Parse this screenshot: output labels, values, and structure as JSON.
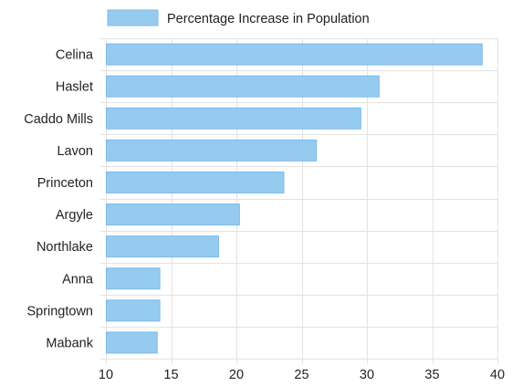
{
  "chart_data": {
    "type": "bar",
    "orientation": "horizontal",
    "categories": [
      "Celina",
      "Haslet",
      "Caddo Mills",
      "Lavon",
      "Princeton",
      "Argyle",
      "Northlake",
      "Anna",
      "Springtown",
      "Mabank"
    ],
    "series": [
      {
        "name": "Percentage Increase in Population",
        "values": [
          38.8,
          30.9,
          29.5,
          26.1,
          23.6,
          20.2,
          18.6,
          14.1,
          14.1,
          13.9
        ],
        "color": "#96cbf0"
      }
    ],
    "xlim": [
      10,
      40
    ],
    "xticks": [
      10,
      15,
      20,
      25,
      30,
      35,
      40
    ],
    "grid": true,
    "legend_position": "top"
  }
}
